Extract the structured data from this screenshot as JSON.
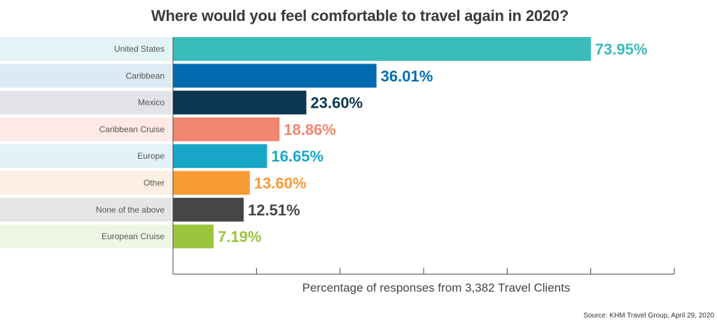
{
  "chart_data": {
    "type": "bar",
    "orientation": "horizontal",
    "title": "Where would you feel comfortable to travel again in 2020?",
    "xlabel": "Percentage of responses from 3,382 Travel Clients",
    "ylabel": "",
    "source": "Source: KHM Travel Group, April 29, 2020",
    "xlim": [
      0,
      88.7
    ],
    "grid": false,
    "categories": [
      "United States",
      "Caribbean",
      "Mexico",
      "Caribbean Cruise",
      "Europe",
      "Other",
      "None of the above",
      "European Cruise"
    ],
    "values": [
      73.95,
      36.01,
      23.6,
      18.86,
      16.65,
      13.6,
      12.51,
      7.19
    ],
    "value_labels": [
      "73.95%",
      "36.01%",
      "23.60%",
      "18.86%",
      "16.65%",
      "13.60%",
      "12.51%",
      "7.19%"
    ],
    "bar_colors": [
      "#3bbcbc",
      "#006bb0",
      "#0c3550",
      "#f2866e",
      "#18a6c8",
      "#f99a32",
      "#454648",
      "#9bc53d"
    ],
    "label_band_colors": [
      "#e3f4f6",
      "#dde9f3",
      "#e1e3e6",
      "#fde9e5",
      "#e1f2f8",
      "#fdefe3",
      "#e5e5e6",
      "#eff6e4"
    ]
  }
}
